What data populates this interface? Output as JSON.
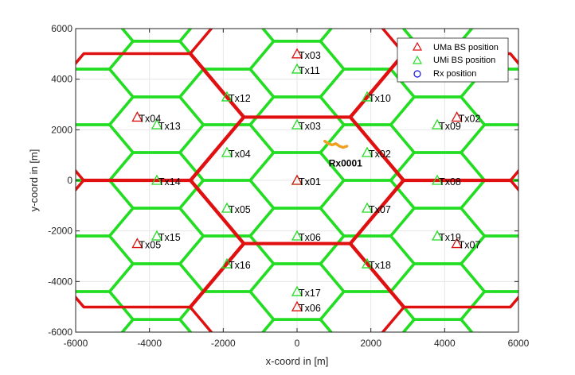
{
  "chart_data": {
    "type": "scatter",
    "xlabel": "x-coord in [m]",
    "ylabel": "y-coord in [m]",
    "xlim": [
      -6000,
      6000
    ],
    "ylim": [
      -6000,
      6000
    ],
    "xticks": [
      -6000,
      -4000,
      -2000,
      0,
      2000,
      4000,
      6000
    ],
    "yticks": [
      -6000,
      -4000,
      -2000,
      0,
      2000,
      4000,
      6000
    ],
    "xtick_labels": [
      "-6000",
      "-4000",
      "-2000",
      "0",
      "2000",
      "4000",
      "6000"
    ],
    "ytick_labels": [
      "-6000",
      "-4000",
      "-2000",
      "0",
      "2000",
      "4000",
      "6000"
    ],
    "grid": true,
    "legend_position": "top-right",
    "legend": [
      {
        "label": "UMa BS position",
        "marker": "triangle",
        "color": "#e01010"
      },
      {
        "label": "UMi BS position",
        "marker": "triangle",
        "color": "#22dd22"
      },
      {
        "label": "Rx position",
        "marker": "circle",
        "color": "#1010e0"
      }
    ],
    "uma_bs": [
      {
        "label": "Tx01",
        "x": 0,
        "y": 0
      },
      {
        "label": "Tx02",
        "x": 4330,
        "y": 2500
      },
      {
        "label": "Tx03",
        "x": 0,
        "y": 5000
      },
      {
        "label": "Tx04",
        "x": -4330,
        "y": 2500
      },
      {
        "label": "Tx05",
        "x": -4330,
        "y": -2500
      },
      {
        "label": "Tx06",
        "x": 0,
        "y": -5000
      },
      {
        "label": "Tx07",
        "x": 4330,
        "y": -2500
      }
    ],
    "umi_bs": [
      {
        "label": "Tx01",
        "x": 0,
        "y": 0
      },
      {
        "label": "Tx02",
        "x": 1900,
        "y": 1100
      },
      {
        "label": "Tx03",
        "x": 0,
        "y": 2200
      },
      {
        "label": "Tx04",
        "x": -1900,
        "y": 1100
      },
      {
        "label": "Tx05",
        "x": -1900,
        "y": -1100
      },
      {
        "label": "Tx06",
        "x": 0,
        "y": -2200
      },
      {
        "label": "Tx07",
        "x": 1900,
        "y": -1100
      },
      {
        "label": "Tx08",
        "x": 3800,
        "y": 0
      },
      {
        "label": "Tx09",
        "x": 3800,
        "y": 2200
      },
      {
        "label": "Tx10",
        "x": 1900,
        "y": 3300
      },
      {
        "label": "Tx11",
        "x": 0,
        "y": 4400
      },
      {
        "label": "Tx12",
        "x": -1900,
        "y": 3300
      },
      {
        "label": "Tx13",
        "x": -3800,
        "y": 2200
      },
      {
        "label": "Tx14",
        "x": -3800,
        "y": 0
      },
      {
        "label": "Tx15",
        "x": -3800,
        "y": -2200
      },
      {
        "label": "Tx16",
        "x": -1900,
        "y": -3300
      },
      {
        "label": "Tx17",
        "x": 0,
        "y": -4400
      },
      {
        "label": "Tx18",
        "x": 1900,
        "y": -3300
      },
      {
        "label": "Tx19",
        "x": 3800,
        "y": -2200
      }
    ],
    "rx": {
      "label": "Rx0001",
      "track": [
        [
          750,
          1550
        ],
        [
          850,
          1450
        ],
        [
          950,
          1400
        ],
        [
          1050,
          1450
        ],
        [
          1150,
          1350
        ],
        [
          1250,
          1300
        ],
        [
          1350,
          1350
        ]
      ]
    },
    "uma_cell_radius": 2900,
    "umi_cell_radius": 1270,
    "colors": {
      "uma_boundary": "#e01010",
      "umi_boundary": "#22dd22",
      "rx_track": "#f0a020",
      "grid": "#e6e6e6",
      "axes": "#262626"
    }
  }
}
